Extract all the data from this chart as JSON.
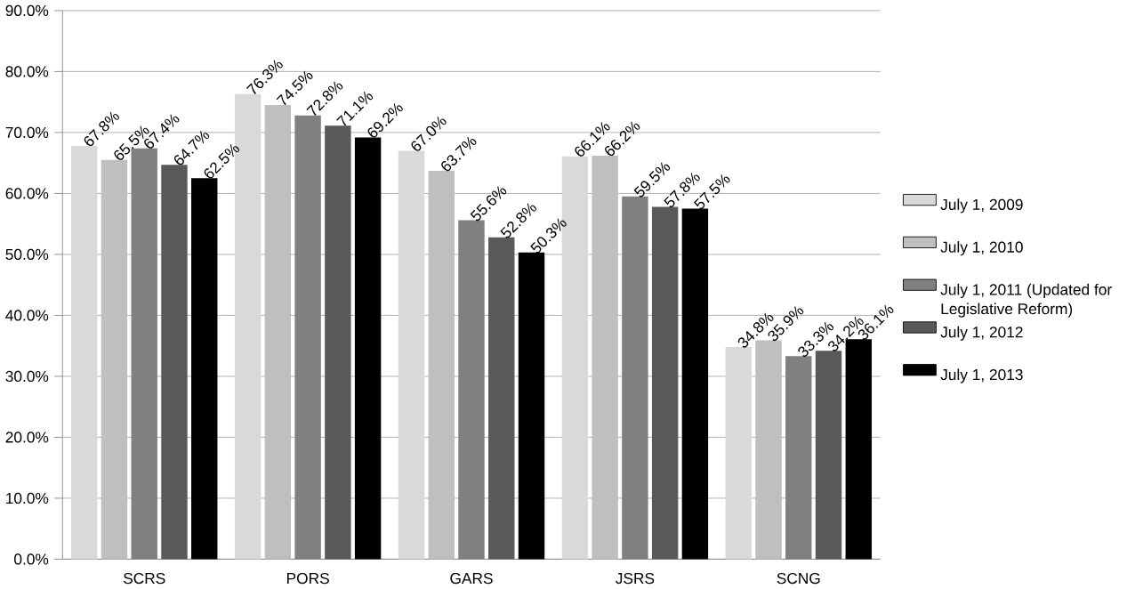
{
  "chart_data": {
    "type": "bar",
    "categories": [
      "SCRS",
      "PORS",
      "GARS",
      "JSRS",
      "SCNG"
    ],
    "series": [
      {
        "name": "July 1, 2009",
        "color": "#d9d9d9",
        "values": [
          67.8,
          76.3,
          67.0,
          66.1,
          34.8
        ],
        "value_labels": [
          "67.8%",
          "76.3%",
          "67.0%",
          "66.1%",
          "34.8%"
        ]
      },
      {
        "name": "July 1, 2010",
        "color": "#bfbfbf",
        "values": [
          65.5,
          74.5,
          63.7,
          66.2,
          35.9
        ],
        "value_labels": [
          "65.5%",
          "74.5%",
          "63.7%",
          "66.2%",
          "35.9%"
        ]
      },
      {
        "name": "July 1, 2011 (Updated for Legislative Reform)",
        "color": "#808080",
        "values": [
          67.4,
          72.8,
          55.6,
          59.5,
          33.3
        ],
        "value_labels": [
          "67.4%",
          "72.8%",
          "55.6%",
          "59.5%",
          "33.3%"
        ]
      },
      {
        "name": "July 1, 2012",
        "color": "#595959",
        "values": [
          64.7,
          71.1,
          52.8,
          57.8,
          34.2
        ],
        "value_labels": [
          "64.7%",
          "71.1%",
          "52.8%",
          "57.8%",
          "34.2%"
        ]
      },
      {
        "name": "July 1, 2013",
        "color": "#000000",
        "values": [
          62.5,
          69.2,
          50.3,
          57.5,
          36.1
        ],
        "value_labels": [
          "62.5%",
          "69.2%",
          "50.3%",
          "57.5%",
          "36.1%"
        ]
      }
    ],
    "ylim": [
      0,
      90
    ],
    "yticks": [
      {
        "value": 0,
        "label": "0.0%"
      },
      {
        "value": 10,
        "label": "10.0%"
      },
      {
        "value": 20,
        "label": "20.0%"
      },
      {
        "value": 30,
        "label": "30.0%"
      },
      {
        "value": 40,
        "label": "40.0%"
      },
      {
        "value": 50,
        "label": "50.0%"
      },
      {
        "value": 60,
        "label": "60.0%"
      },
      {
        "value": 70,
        "label": "70.0%"
      },
      {
        "value": 80,
        "label": "80.0%"
      },
      {
        "value": 90,
        "label": "90.0%"
      }
    ],
    "grid": "y",
    "legend": "right"
  }
}
